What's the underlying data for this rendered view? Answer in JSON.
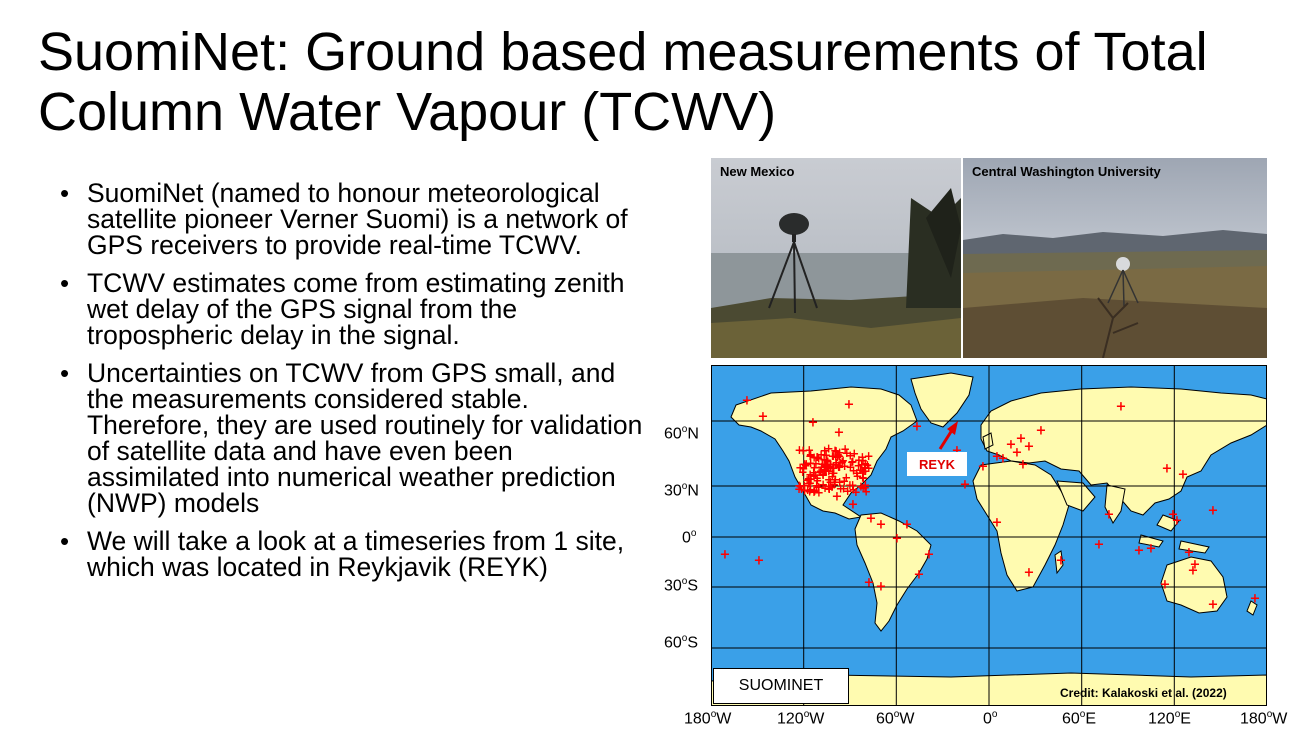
{
  "title": "SuomiNet: Ground based measurements of Total Column Water Vapour (TCWV)",
  "bullets": [
    "SuomiNet (named to honour meteorological satellite pioneer Verner Suomi) is a network of GPS receivers to provide real-time TCWV.",
    "TCWV estimates come from estimating zenith wet delay of the GPS signal from the tropospheric delay in the signal.",
    "Uncertainties on TCWV from GPS small, and the measurements considered stable. Therefore, they are used routinely for validation of satellite data and have even been assimilated into numerical weather prediction (NWP) models",
    "We will take a look at a timeseries from 1 site, which was located in Reykjavik (REYK)"
  ],
  "photos": {
    "left_label": "New Mexico",
    "right_label": "Central Washington University"
  },
  "map": {
    "legend_text": "SUOMINET",
    "reyk_label": "REYK",
    "credit": "Credit: Kalakoski et al. (2022)",
    "y_labels": [
      "60",
      "N",
      "30",
      "N",
      "0",
      "",
      "30",
      "S",
      "60",
      "S"
    ],
    "y_ticks": [
      {
        "num": "60",
        "dir": "N"
      },
      {
        "num": "30",
        "dir": "N"
      },
      {
        "num": "0",
        "dir": ""
      },
      {
        "num": "30",
        "dir": "S"
      },
      {
        "num": "60",
        "dir": "S"
      }
    ],
    "x_ticks": [
      {
        "num": "180",
        "dir": "W"
      },
      {
        "num": "120",
        "dir": "W"
      },
      {
        "num": "60",
        "dir": "W"
      },
      {
        "num": "0",
        "dir": ""
      },
      {
        "num": "60",
        "dir": "E"
      },
      {
        "num": "120",
        "dir": "E"
      },
      {
        "num": "180",
        "dir": "W"
      }
    ],
    "degree_symbol": "o",
    "ocean_color": "#3aa0e8",
    "land_color": "#fffbb0",
    "station_color": "#ff0000"
  }
}
